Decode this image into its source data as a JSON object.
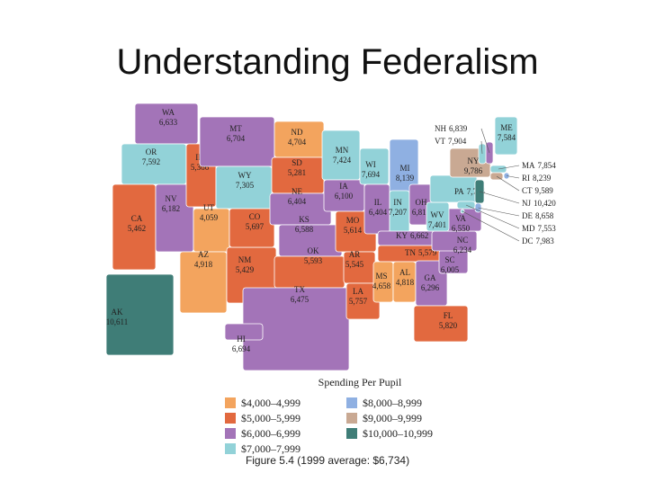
{
  "header": {
    "title": "Understanding Federalism"
  },
  "map": {
    "states": [
      {
        "name": "WA",
        "value": "6,633",
        "color": "#a374b8"
      },
      {
        "name": "OR",
        "value": "7,592",
        "color": "#92d2d8"
      },
      {
        "name": "CA",
        "value": "5,462",
        "color": "#e2693f"
      },
      {
        "name": "NV",
        "value": "6,182",
        "color": "#a374b8"
      },
      {
        "name": "ID",
        "value": "5,366",
        "color": "#e2693f"
      },
      {
        "name": "MT",
        "value": "6,704",
        "color": "#a374b8"
      },
      {
        "name": "WY",
        "value": "7,305",
        "color": "#92d2d8"
      },
      {
        "name": "UT",
        "value": "4,059",
        "color": "#f3a45e"
      },
      {
        "name": "AZ",
        "value": "4,918",
        "color": "#f3a45e"
      },
      {
        "name": "NM",
        "value": "5,429",
        "color": "#e2693f"
      },
      {
        "name": "CO",
        "value": "5,697",
        "color": "#e2693f"
      },
      {
        "name": "ND",
        "value": "4,704",
        "color": "#f3a45e"
      },
      {
        "name": "SD",
        "value": "5,281",
        "color": "#e2693f"
      },
      {
        "name": "NE",
        "value": "6,404",
        "color": "#a374b8"
      },
      {
        "name": "KS",
        "value": "6,588",
        "color": "#a374b8"
      },
      {
        "name": "OK",
        "value": "5,593",
        "color": "#e2693f"
      },
      {
        "name": "TX",
        "value": "6,475",
        "color": "#a374b8"
      },
      {
        "name": "MN",
        "value": "7,424",
        "color": "#92d2d8"
      },
      {
        "name": "IA",
        "value": "6,100",
        "color": "#a374b8"
      },
      {
        "name": "MO",
        "value": "5,614",
        "color": "#e2693f"
      },
      {
        "name": "AR",
        "value": "5,545",
        "color": "#e2693f"
      },
      {
        "name": "LA",
        "value": "5,757",
        "color": "#e2693f"
      },
      {
        "name": "WI",
        "value": "7,694",
        "color": "#92d2d8"
      },
      {
        "name": "MI",
        "value": "8,139",
        "color": "#8fb0e2"
      },
      {
        "name": "IL",
        "value": "6,404",
        "color": "#a374b8"
      },
      {
        "name": "IN",
        "value": "7,207",
        "color": "#92d2d8"
      },
      {
        "name": "OH",
        "value": "6,816",
        "color": "#a374b8"
      },
      {
        "name": "KY",
        "value": "6,662",
        "color": "#a374b8"
      },
      {
        "name": "TN",
        "value": "5,579",
        "color": "#e2693f"
      },
      {
        "name": "MS",
        "value": "4,658",
        "color": "#f3a45e"
      },
      {
        "name": "AL",
        "value": "4,818",
        "color": "#f3a45e"
      },
      {
        "name": "GA",
        "value": "6,296",
        "color": "#a374b8"
      },
      {
        "name": "FL",
        "value": "5,820",
        "color": "#e2693f"
      },
      {
        "name": "SC",
        "value": "6,005",
        "color": "#a374b8"
      },
      {
        "name": "NC",
        "value": "6,234",
        "color": "#a374b8"
      },
      {
        "name": "VA",
        "value": "6,550",
        "color": "#a374b8"
      },
      {
        "name": "WV",
        "value": "7,401",
        "color": "#92d2d8"
      },
      {
        "name": "PA",
        "value": "7,716",
        "color": "#92d2d8"
      },
      {
        "name": "NY",
        "value": "9,786",
        "color": "#c9a993"
      },
      {
        "name": "ME",
        "value": "7,584",
        "color": "#92d2d8"
      },
      {
        "name": "NH",
        "value": "6,839",
        "color": "#a374b8"
      },
      {
        "name": "VT",
        "value": "7,904",
        "color": "#92d2d8"
      },
      {
        "name": "MA",
        "value": "7,854",
        "color": "#92d2d8"
      },
      {
        "name": "RI",
        "value": "8,239",
        "color": "#8fb0e2"
      },
      {
        "name": "CT",
        "value": "9,589",
        "color": "#c9a993"
      },
      {
        "name": "NJ",
        "value": "10,420",
        "color": "#3f7d77"
      },
      {
        "name": "DE",
        "value": "8,658",
        "color": "#8fb0e2"
      },
      {
        "name": "MD",
        "value": "7,553",
        "color": "#92d2d8"
      },
      {
        "name": "DC",
        "value": "7,983",
        "color": "#92d2d8"
      },
      {
        "name": "AK",
        "value": "10,611",
        "color": "#3f7d77"
      },
      {
        "name": "HI",
        "value": "6,694",
        "color": "#a374b8"
      }
    ]
  },
  "legend": {
    "title": "Spending Per Pupil",
    "items": [
      {
        "label": "$4,000–4,999",
        "color": "#f3a45e"
      },
      {
        "label": "$5,000–5,999",
        "color": "#e2693f"
      },
      {
        "label": "$6,000–6,999",
        "color": "#a374b8"
      },
      {
        "label": "$7,000–7,999",
        "color": "#92d2d8"
      },
      {
        "label": "$8,000–8,999",
        "color": "#8fb0e2"
      },
      {
        "label": "$9,000–9,999",
        "color": "#c9a993"
      },
      {
        "label": "$10,000–10,999",
        "color": "#3f7d77"
      }
    ]
  },
  "caption": "Figure 5.4 (1999 average: $6,734)"
}
